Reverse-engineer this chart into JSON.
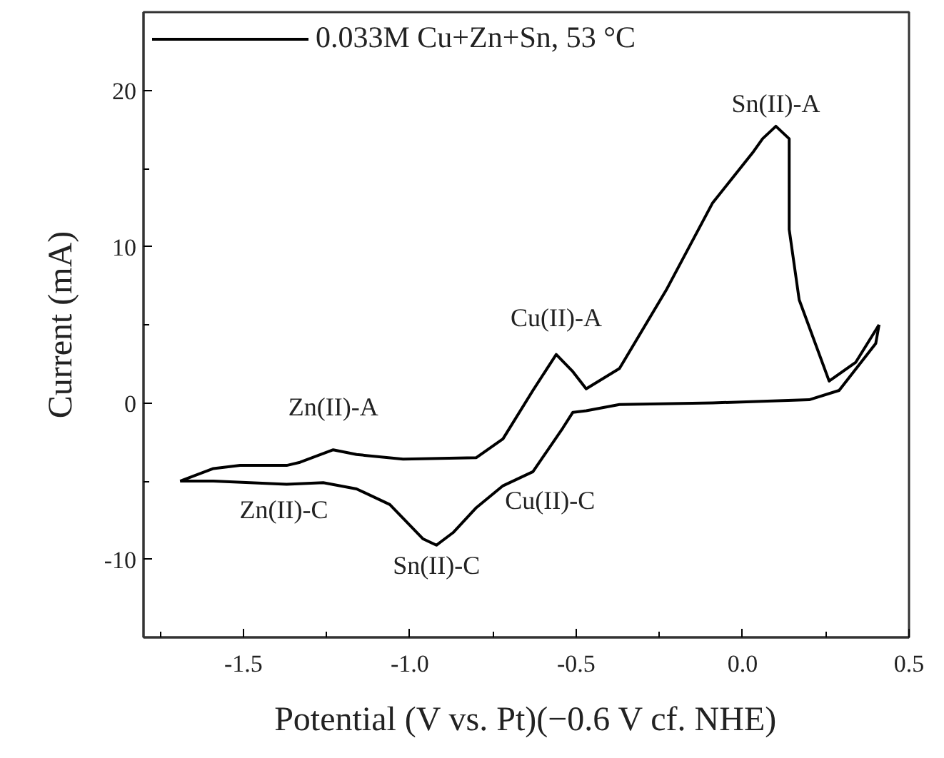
{
  "chart_data": {
    "type": "line",
    "xlabel": "Potential (V vs. Pt)(−0.6 V cf. NHE)",
    "ylabel": "Current (mA)",
    "xlim": [
      -1.8,
      0.5
    ],
    "ylim": [
      -15,
      25
    ],
    "xticks": [
      {
        "value": -1.75,
        "label": null
      },
      {
        "value": -1.5,
        "label": "-1.5"
      },
      {
        "value": -1.25,
        "label": null
      },
      {
        "value": -1.0,
        "label": "-1.0"
      },
      {
        "value": -0.75,
        "label": null
      },
      {
        "value": -0.5,
        "label": "-0.5"
      },
      {
        "value": -0.25,
        "label": null
      },
      {
        "value": 0.0,
        "label": "0.0"
      },
      {
        "value": 0.25,
        "label": null
      },
      {
        "value": 0.5,
        "label": "0.5"
      }
    ],
    "yticks": [
      {
        "value": -10,
        "label": "-10"
      },
      {
        "value": -5,
        "label": null
      },
      0,
      {
        "value": 5,
        "label": null
      },
      10,
      {
        "value": 15,
        "label": null
      },
      20
    ],
    "grid": false,
    "legend": "top left",
    "line_style": "solid",
    "marker": "none",
    "series": [
      {
        "name": "0.033M Cu+Zn+Sn, 53 °C",
        "color": "#000000",
        "x": [
          -1.69,
          -1.59,
          -1.51,
          -1.37,
          -1.33,
          -1.23,
          -1.16,
          -1.02,
          -0.8,
          -0.72,
          -0.63,
          -0.56,
          -0.51,
          -0.47,
          -0.37,
          -0.23,
          -0.09,
          0.03,
          0.06,
          0.1,
          0.14,
          0.14,
          0.17,
          0.26,
          0.34,
          0.41
        ],
        "values": [
          -5.0,
          -4.2,
          -4.0,
          -4.0,
          -3.8,
          -3.0,
          -3.3,
          -3.6,
          -3.5,
          -2.3,
          0.8,
          3.1,
          2.0,
          0.9,
          2.2,
          7.2,
          12.8,
          16.0,
          16.9,
          17.7,
          16.9,
          11.1,
          6.6,
          1.4,
          2.6,
          5.0
        ]
      },
      {
        "color": "#000000",
        "x": [
          0.41,
          0.4,
          0.29,
          0.2,
          -0.09,
          -0.37,
          -0.47,
          -0.51,
          -0.54,
          -0.63,
          -0.72,
          -0.8,
          -0.87,
          -0.92,
          -0.96,
          -1.06,
          -1.16,
          -1.26,
          -1.37,
          -1.59,
          -1.69
        ],
        "values": [
          5.0,
          3.8,
          0.8,
          0.2,
          0.0,
          -0.1,
          -0.5,
          -0.6,
          -1.6,
          -4.4,
          -5.3,
          -6.7,
          -8.3,
          -9.1,
          -8.7,
          -6.5,
          -5.5,
          -5.1,
          -5.2,
          -5.0,
          -5.0
        ]
      }
    ],
    "annotations": [
      {
        "text": "Zn(II)-A",
        "x": -1.23,
        "y": -3.0
      },
      {
        "text": "Zn(II)-C",
        "x": -1.37,
        "y": -5.2
      },
      {
        "text": "Sn(II)-C",
        "x": -0.92,
        "y": -9.1
      },
      {
        "text": "Cu(II)-C",
        "x": -0.63,
        "y": -4.4
      },
      {
        "text": "Cu(II)-A",
        "x": -0.56,
        "y": 3.1
      },
      {
        "text": "Sn(II)-A",
        "x": 0.1,
        "y": 17.7
      }
    ]
  }
}
